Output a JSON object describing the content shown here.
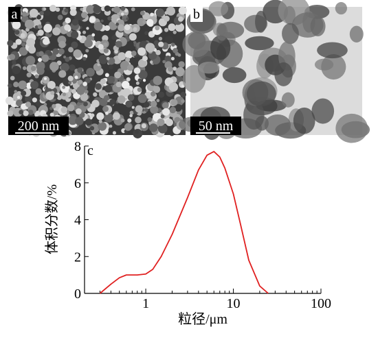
{
  "panels": [
    {
      "label": "a",
      "scale_bar": "200 nm"
    },
    {
      "label": "b",
      "scale_bar": "50 nm"
    }
  ],
  "chart_data": {
    "type": "line",
    "label": "c",
    "x_label": "粒径/μm",
    "y_label": "体积分数/%",
    "log_x": true,
    "xlim": [
      0.2,
      100
    ],
    "xticks": [
      1,
      10,
      100
    ],
    "x_minor_ticks": [
      0.2,
      0.3,
      0.4,
      0.5,
      0.6,
      0.7,
      0.8,
      0.9,
      2,
      3,
      4,
      5,
      6,
      7,
      8,
      9,
      20,
      30,
      40,
      50,
      60,
      70,
      80,
      90
    ],
    "ylim": [
      0,
      8
    ],
    "yticks": [
      0,
      2,
      4,
      6,
      8
    ],
    "series": [
      {
        "color": "#e02020",
        "x": [
          0.3,
          0.4,
          0.5,
          0.6,
          0.8,
          1.0,
          1.2,
          1.5,
          2,
          3,
          4,
          5,
          6,
          7,
          8,
          10,
          12,
          15,
          20,
          25
        ],
        "values": [
          0,
          0.5,
          0.85,
          1.0,
          1.0,
          1.05,
          1.3,
          2.0,
          3.2,
          5.2,
          6.7,
          7.5,
          7.7,
          7.4,
          6.8,
          5.4,
          3.8,
          1.8,
          0.4,
          0
        ]
      }
    ]
  }
}
